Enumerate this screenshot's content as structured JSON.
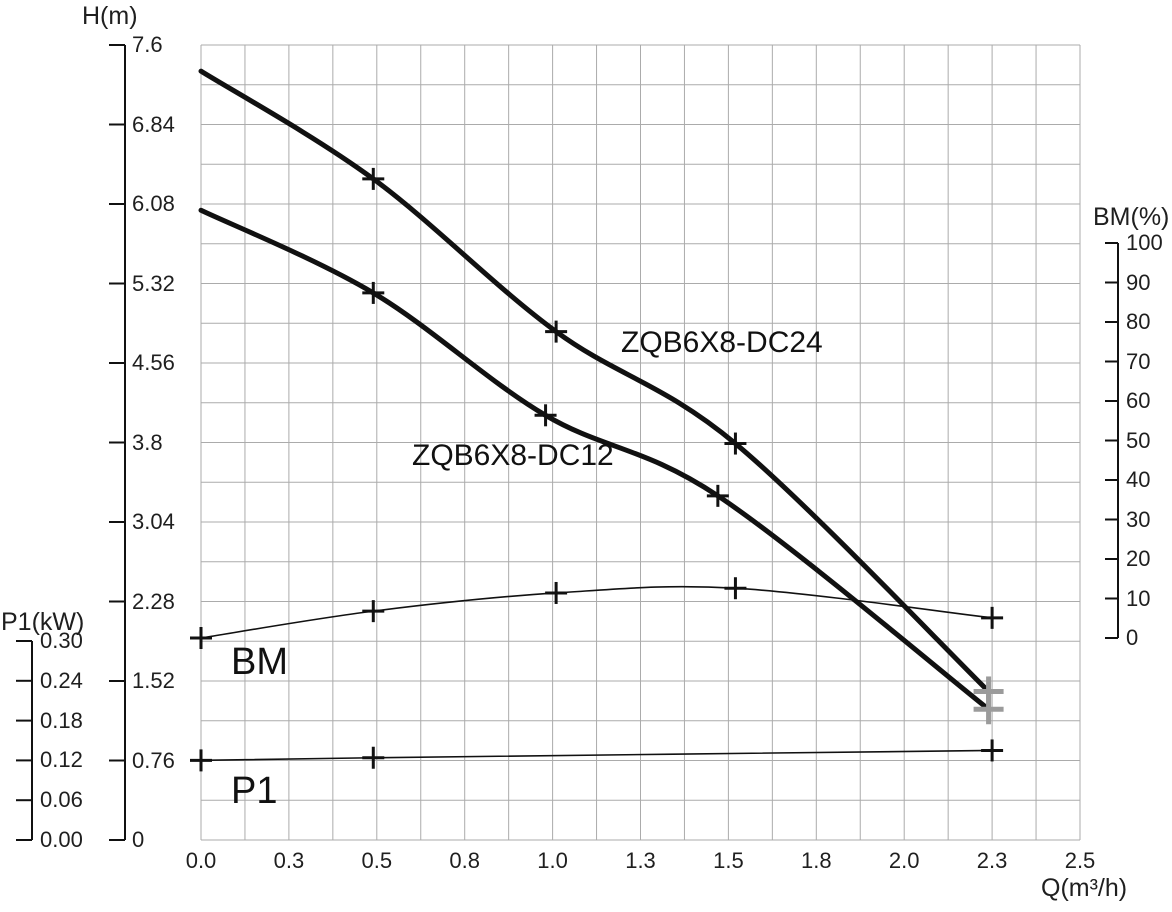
{
  "chart_data": {
    "type": "line",
    "title": "",
    "grid": true,
    "x_axis": {
      "label": "Q(m³/h)",
      "range": [
        0,
        2.5
      ],
      "tick_labels": [
        "0.0",
        "0.3",
        "0.5",
        "0.8",
        "1.0",
        "1.3",
        "1.5",
        "1.8",
        "2.0",
        "2.3",
        "2.5"
      ],
      "tick_values": [
        0,
        0.25,
        0.5,
        0.75,
        1.0,
        1.25,
        1.5,
        1.75,
        2.0,
        2.25,
        2.5
      ]
    },
    "y_axes": [
      {
        "id": "h",
        "label": "H(m)",
        "range": [
          0,
          7.6
        ],
        "tick_labels": [
          "7.6",
          "6.84",
          "6.08",
          "5.32",
          "4.56",
          "3.8",
          "3.04",
          "2.28",
          "1.52",
          "0.76",
          "0"
        ]
      },
      {
        "id": "p1",
        "label": "P1(kW)",
        "range": [
          0,
          0.3
        ],
        "tick_labels": [
          "0.30",
          "0.24",
          "0.18",
          "0.12",
          "0.06",
          "0.00"
        ]
      },
      {
        "id": "bm",
        "label": "BM(%)",
        "range": [
          0,
          100
        ],
        "tick_labels": [
          "100",
          "90",
          "80",
          "70",
          "60",
          "50",
          "40",
          "30",
          "20",
          "10",
          "0"
        ]
      }
    ],
    "series": [
      {
        "name": "ZQB6X8-DC24",
        "axis": "h",
        "x": [
          0,
          0.49,
          1.01,
          1.52,
          2.24
        ],
        "values": [
          7.35,
          6.32,
          4.86,
          3.79,
          1.42
        ],
        "marker_indices": [
          1,
          2,
          3
        ],
        "end_cross": true,
        "width": "thick"
      },
      {
        "name": "ZQB6X8-DC12",
        "axis": "h",
        "x": [
          0,
          0.49,
          0.98,
          1.47,
          2.24
        ],
        "values": [
          6.02,
          5.23,
          4.06,
          3.29,
          1.25
        ],
        "marker_indices": [
          1,
          2,
          3
        ],
        "end_cross": true,
        "width": "thick"
      },
      {
        "name": "BM",
        "axis": "bm",
        "x": [
          0,
          0.49,
          1.01,
          1.52,
          2.25
        ],
        "values": [
          0,
          6.8,
          11.4,
          12.6,
          5.1
        ],
        "marker_indices": [
          0,
          1,
          2,
          3,
          4
        ],
        "end_cross": false,
        "width": "thin"
      },
      {
        "name": "P1",
        "axis": "p1",
        "x": [
          0,
          0.49,
          2.25
        ],
        "values": [
          0.12,
          0.124,
          0.135
        ],
        "marker_indices": [
          0,
          1,
          2
        ],
        "end_cross": false,
        "width": "thin"
      }
    ],
    "annotations": [
      {
        "text": "ZQB6X8-DC24"
      },
      {
        "text": "ZQB6X8-DC12"
      },
      {
        "text": "BM"
      },
      {
        "text": "P1"
      }
    ],
    "legend": "none",
    "colors": {
      "line": "#111111",
      "grid": "#ababab",
      "axis": "#111111",
      "end_marker": "#9b9b9b",
      "background": "#ffffff"
    }
  }
}
